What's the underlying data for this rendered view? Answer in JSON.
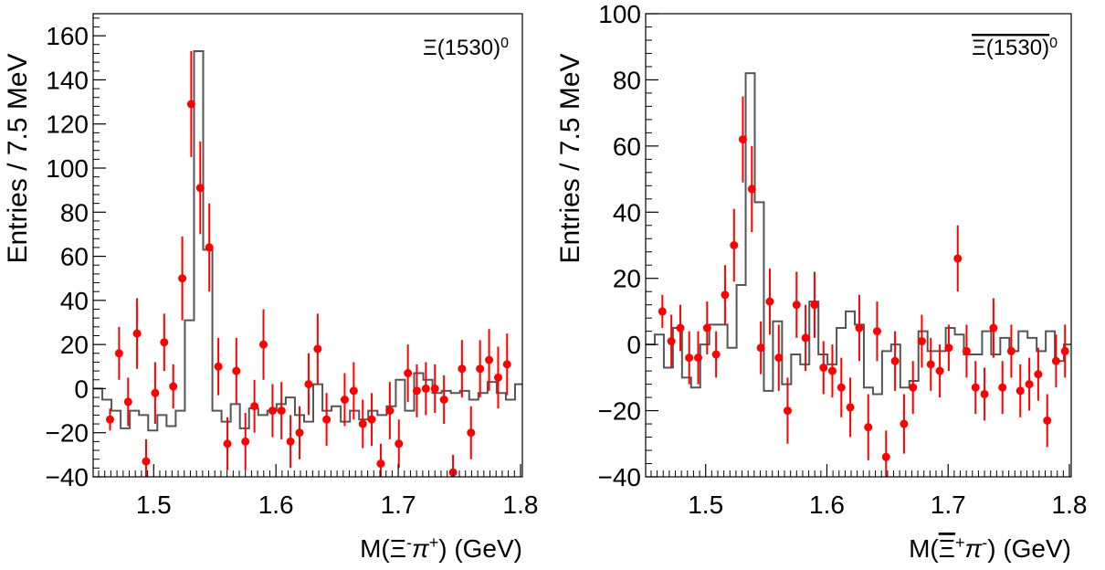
{
  "colors": {
    "data": "#ff0000",
    "histogram": "#555555",
    "axis": "#000000"
  },
  "chart_data": [
    {
      "type": "scatter",
      "title": "Ξ(1530)",
      "title_superscript": "0",
      "ylabel": "Entries / 7.5 MeV",
      "xlabel": {
        "parts": [
          {
            "text": "M(Ξ",
            "style": "normal"
          },
          {
            "text": "-",
            "style": "sup"
          },
          {
            "text": "π",
            "style": "italic"
          },
          {
            "text": "+",
            "style": "sup"
          },
          {
            "text": ") (GeV)",
            "style": "normal"
          }
        ]
      },
      "xlim": [
        1.4505,
        1.8015
      ],
      "ylim": [
        -40,
        170
      ],
      "xticks": [
        1.5,
        1.6,
        1.7,
        1.8
      ],
      "xtick_labels": [
        "1.5",
        "1.6",
        "1.7",
        "1.8"
      ],
      "yticks": [
        -40,
        -20,
        0,
        20,
        40,
        60,
        80,
        100,
        120,
        140,
        160
      ],
      "ytick_labels": [
        "−40",
        "−20",
        "0",
        "20",
        "40",
        "60",
        "80",
        "100",
        "120",
        "140",
        "160"
      ],
      "legend": "top-right",
      "series": [
        {
          "kind": "histogram",
          "bin_edges": [
            1.4505,
            1.458,
            1.4655,
            1.473,
            1.4805,
            1.488,
            1.4955,
            1.503,
            1.5105,
            1.518,
            1.5255,
            1.533,
            1.5405,
            1.548,
            1.5555,
            1.563,
            1.5705,
            1.578,
            1.5855,
            1.593,
            1.6005,
            1.608,
            1.6155,
            1.623,
            1.6305,
            1.638,
            1.6455,
            1.653,
            1.6605,
            1.668,
            1.6755,
            1.683,
            1.6905,
            1.698,
            1.7055,
            1.713,
            1.7205,
            1.728,
            1.7355,
            1.743,
            1.7505,
            1.758,
            1.7655,
            1.773,
            1.7805,
            1.788,
            1.7955,
            1.8015
          ],
          "values": [
            0,
            -5,
            -10,
            -18,
            -10,
            -12,
            -19,
            -12,
            -17,
            -10,
            31,
            153,
            63,
            -10,
            -15,
            -7,
            -18,
            -9,
            -12,
            -10,
            -7,
            -4,
            -12,
            -15,
            2,
            -10,
            -8,
            -15,
            -10,
            -14,
            -10,
            -12,
            -8,
            4,
            -10,
            7,
            4,
            -2,
            -1,
            -2,
            -1,
            -5,
            -2,
            3,
            -2,
            -5,
            2
          ]
        },
        {
          "kind": "points",
          "x": [
            1.4643,
            1.4717,
            1.4791,
            1.4864,
            1.4938,
            1.5012,
            1.5086,
            1.516,
            1.5234,
            1.5307,
            1.5381,
            1.5455,
            1.5529,
            1.5603,
            1.5676,
            1.575,
            1.5824,
            1.5898,
            1.5972,
            1.6045,
            1.6119,
            1.6193,
            1.6267,
            1.6341,
            1.6414,
            1.6488,
            1.6562,
            1.6636,
            1.671,
            1.6783,
            1.6857,
            1.6931,
            1.7005,
            1.7079,
            1.7152,
            1.7226,
            1.73,
            1.7374,
            1.7448,
            1.7521,
            1.7595,
            1.7669,
            1.7743,
            1.7817,
            1.789,
            1.7964
          ],
          "y": [
            -14,
            16,
            -6,
            25,
            -33,
            -2,
            21,
            1,
            50,
            129,
            91,
            64,
            10,
            -25,
            8,
            -24,
            -8,
            20,
            -10,
            -10,
            -24,
            -20,
            2,
            18,
            -14,
            null,
            -5,
            -1,
            -16,
            -14,
            -34,
            -10,
            -25,
            7,
            -1,
            0,
            0,
            -5,
            -38,
            9,
            -20,
            9,
            13,
            5,
            11,
            null
          ],
          "yerr": [
            5,
            12,
            11,
            16,
            10,
            14,
            13,
            10,
            19,
            24,
            21,
            20,
            13,
            12,
            15,
            13,
            12,
            16,
            12,
            13,
            12,
            12,
            14,
            16,
            12,
            null,
            12,
            13,
            11,
            12,
            9,
            13,
            11,
            13,
            12,
            12,
            11,
            11,
            8,
            13,
            12,
            13,
            14,
            14,
            14,
            null
          ]
        }
      ]
    },
    {
      "type": "scatter",
      "title": "Ξ(1530)",
      "title_superscript": "0",
      "title_overline": true,
      "ylabel": "Entries / 7.5 MeV",
      "xlabel": {
        "parts": [
          {
            "text": "M(",
            "style": "normal"
          },
          {
            "text": "Ξ",
            "style": "overline"
          },
          {
            "text": "+",
            "style": "sup"
          },
          {
            "text": "π",
            "style": "italic"
          },
          {
            "text": "-",
            "style": "sup"
          },
          {
            "text": ") (GeV)",
            "style": "normal"
          }
        ]
      },
      "xlim": [
        1.4505,
        1.8015
      ],
      "ylim": [
        -40,
        100
      ],
      "xticks": [
        1.5,
        1.6,
        1.7,
        1.8
      ],
      "xtick_labels": [
        "1.5",
        "1.6",
        "1.7",
        "1.8"
      ],
      "yticks": [
        -40,
        -20,
        0,
        20,
        40,
        60,
        80,
        100
      ],
      "ytick_labels": [
        "−40",
        "−20",
        "0",
        "20",
        "40",
        "60",
        "80",
        "100"
      ],
      "legend": "top-right",
      "series": [
        {
          "kind": "histogram",
          "bin_edges": [
            1.4505,
            1.458,
            1.4655,
            1.473,
            1.4805,
            1.488,
            1.4955,
            1.503,
            1.5105,
            1.518,
            1.5255,
            1.533,
            1.5405,
            1.548,
            1.5555,
            1.563,
            1.5705,
            1.578,
            1.5855,
            1.593,
            1.6005,
            1.608,
            1.6155,
            1.623,
            1.6305,
            1.638,
            1.6455,
            1.653,
            1.6605,
            1.668,
            1.6755,
            1.683,
            1.6905,
            1.698,
            1.7055,
            1.713,
            1.7205,
            1.728,
            1.7355,
            1.743,
            1.7505,
            1.758,
            1.7655,
            1.773,
            1.7805,
            1.788,
            1.7955,
            1.8015
          ],
          "values": [
            0,
            3,
            -7,
            5,
            -10,
            -13,
            0,
            6,
            6,
            -1,
            18,
            82,
            43,
            -14,
            7,
            -12,
            -3,
            -6,
            13,
            -3,
            -6,
            5,
            10,
            6,
            -13,
            -15,
            -2,
            0,
            -13,
            -11,
            4,
            -2,
            -2,
            5,
            3,
            -3,
            -3,
            4,
            -3,
            2,
            -2,
            4,
            2,
            -2,
            4,
            -5,
            0
          ]
        },
        {
          "kind": "points",
          "x": [
            1.4643,
            1.4717,
            1.4791,
            1.4864,
            1.4938,
            1.5012,
            1.5086,
            1.516,
            1.5234,
            1.5307,
            1.5381,
            1.5455,
            1.5529,
            1.5603,
            1.5676,
            1.575,
            1.5824,
            1.5898,
            1.5972,
            1.6045,
            1.6119,
            1.6193,
            1.6267,
            1.6341,
            1.6414,
            1.6488,
            1.6562,
            1.6636,
            1.671,
            1.6783,
            1.6857,
            1.6931,
            1.7005,
            1.7079,
            1.7152,
            1.7226,
            1.73,
            1.7374,
            1.7448,
            1.7521,
            1.7595,
            1.7669,
            1.7743,
            1.7817,
            1.789,
            1.7964
          ],
          "y": [
            10,
            1,
            5,
            -4,
            -4,
            5,
            -3,
            15,
            30,
            62,
            47,
            -1,
            13,
            -4,
            -20,
            12,
            2,
            12,
            -7,
            -8,
            -13,
            -19,
            5,
            -25,
            4,
            -34,
            -5,
            -24,
            -13,
            1,
            -6,
            -8,
            -1,
            26,
            -2,
            -13,
            -15,
            5,
            -13,
            -2,
            -14,
            -12,
            -9,
            -23,
            -5,
            -2
          ],
          "yerr": [
            5,
            8,
            7,
            8,
            8,
            8,
            7,
            9,
            11,
            13,
            13,
            8,
            10,
            10,
            10,
            10,
            10,
            10,
            8,
            8,
            9,
            9,
            10,
            10,
            9,
            8,
            9,
            9,
            8,
            8,
            8,
            8,
            7,
            10,
            8,
            8,
            8,
            9,
            8,
            8,
            8,
            8,
            8,
            8,
            8,
            8
          ]
        }
      ]
    }
  ]
}
